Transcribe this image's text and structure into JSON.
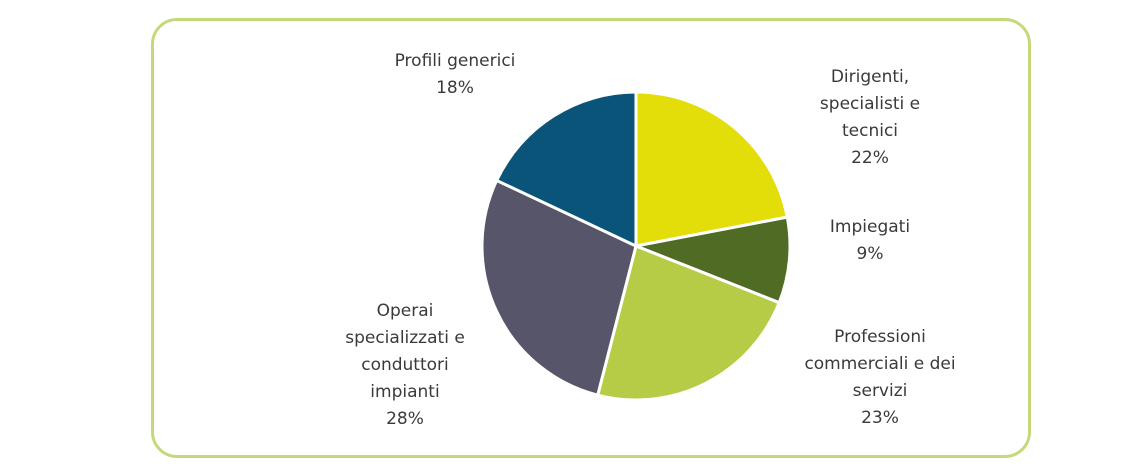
{
  "chart_data": {
    "type": "pie",
    "legend": "none",
    "categories": [
      "Dirigenti, specialisti e tecnici",
      "Impiegati",
      "Professioni commerciali e dei servizi",
      "Operai specializzati e conduttori impianti",
      "Profili generici"
    ],
    "values": [
      22,
      9,
      23,
      28,
      18
    ],
    "unit": "%",
    "colors": [
      "#e3dd0a",
      "#4f6b24",
      "#b7cc46",
      "#565569",
      "#0b5479"
    ],
    "labels": [
      {
        "lines": [
          "Dirigenti,",
          "specialisti e",
          "tecnici"
        ],
        "value": "22%"
      },
      {
        "lines": [
          "Impiegati"
        ],
        "value": "9%"
      },
      {
        "lines": [
          "Professioni",
          "commerciali e dei",
          "servizi"
        ],
        "value": "23%"
      },
      {
        "lines": [
          "Operai",
          "specializzati e",
          "conduttori",
          "impianti"
        ],
        "value": "28%"
      },
      {
        "lines": [
          "Profili generici"
        ],
        "value": "18%"
      }
    ]
  }
}
